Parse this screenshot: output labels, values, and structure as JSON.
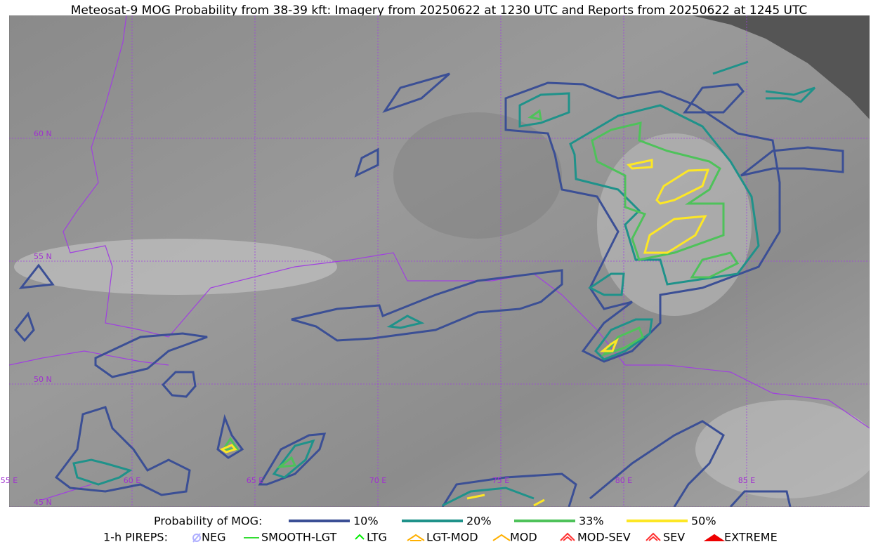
{
  "title": "Meteosat-9 MOG Probability from 38-39 kft: Imagery from 20250622 at 1230 UTC and Reports from 20250622 at 1245 UTC",
  "map": {
    "lat_labels": [
      "60 N",
      "55 N",
      "50 N",
      "45 N"
    ],
    "lon_labels": [
      "55 E",
      "60 E",
      "65 E",
      "70 E",
      "75 E",
      "80 E",
      "85 E"
    ]
  },
  "legend": {
    "probability": {
      "label": "Probability of MOG:",
      "items": [
        {
          "label": "10%",
          "color": "#3b4f95"
        },
        {
          "label": "20%",
          "color": "#1f928a"
        },
        {
          "label": "33%",
          "color": "#4ec25a"
        },
        {
          "label": "50%",
          "color": "#fde725"
        }
      ]
    },
    "pireps": {
      "label": "1-h PIREPS:",
      "items": [
        {
          "label": "NEG",
          "color": "#b0b0ff"
        },
        {
          "label": "SMOOTH-LGT",
          "color": "#33dd33"
        },
        {
          "label": "LTG",
          "color": "#00ee00"
        },
        {
          "label": "LGT-MOD",
          "color": "#ffb000"
        },
        {
          "label": "MOD",
          "color": "#ffb000"
        },
        {
          "label": "MOD-SEV",
          "color": "#ff3030"
        },
        {
          "label": "SEV",
          "color": "#ff3030"
        },
        {
          "label": "EXTREME",
          "color": "#ee0000"
        }
      ]
    }
  }
}
